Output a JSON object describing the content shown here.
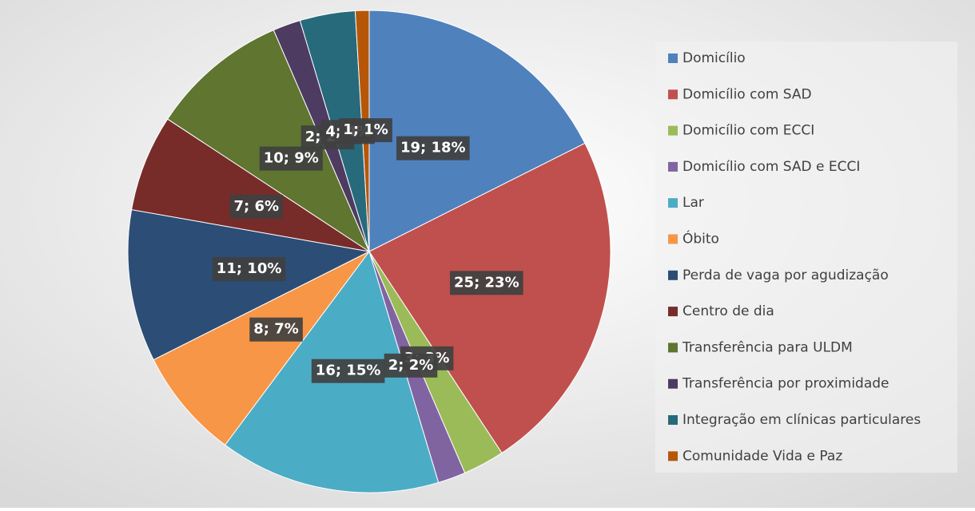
{
  "chart_data": {
    "type": "pie",
    "categories": [
      "Domicílio",
      "Domicílio com SAD",
      "Domicílio com ECCI",
      "Domicílio com SAD e ECCI",
      "Lar",
      "Óbito",
      "Perda de vaga por agudização",
      "Centro de dia",
      "Transferência para ULDM",
      "Transferência por proximidade",
      "Integração em clínicas particulares",
      "Comunidade Vida e Paz"
    ],
    "values": [
      19,
      25,
      3,
      2,
      16,
      8,
      11,
      7,
      10,
      2,
      4,
      1
    ],
    "value_labels": [
      "19; 18%",
      "25; 23%",
      "3; 3%",
      "2; 2%",
      "16; 15%",
      "8; 7%",
      "11; 10%",
      "7; 6%",
      "10; 9%",
      "2; 2%",
      "4; 4%",
      "1; 1%"
    ],
    "colors": [
      "#4f81bd",
      "#c0504d",
      "#9bbb59",
      "#8064a2",
      "#4bacc6",
      "#f79646",
      "#2c4d75",
      "#772c2a",
      "#5f7530",
      "#4d3b62",
      "#276a7c",
      "#b65708"
    ],
    "legend": "right"
  }
}
